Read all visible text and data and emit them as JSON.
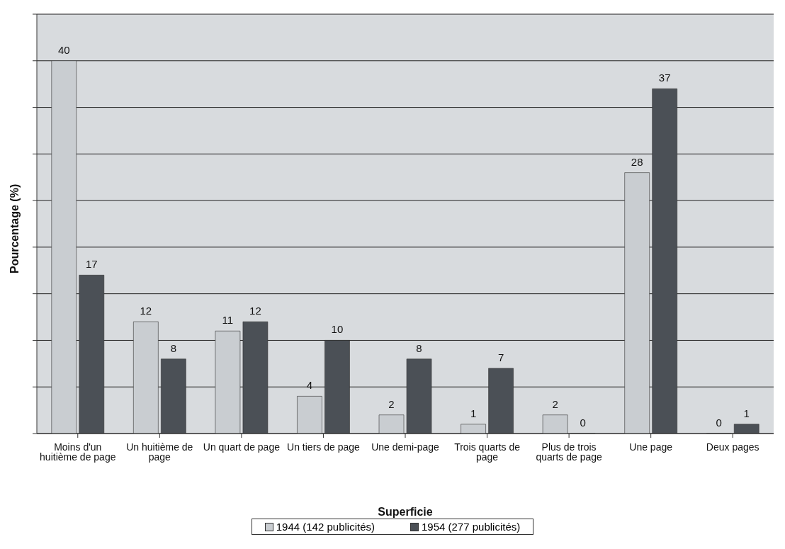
{
  "chart_data": {
    "type": "bar",
    "xlabel": "Superficie",
    "ylabel": "Pourcentage (%)",
    "categories": [
      "Moins d'un huitième de page",
      "Un huitième de page",
      "Un quart de page",
      "Un tiers de page",
      "Une demi-page",
      "Trois quarts de page",
      "Plus de trois quarts de page",
      "Une page",
      "Deux pages"
    ],
    "series": [
      {
        "name": "1944 (142 publicités)",
        "color": "#c9cdd1",
        "values": [
          40,
          12,
          11,
          4,
          2,
          1,
          2,
          28,
          0
        ]
      },
      {
        "name": "1954 (277 publicités)",
        "color": "#4b5056",
        "values": [
          17,
          8,
          12,
          10,
          8,
          7,
          0,
          37,
          1
        ]
      }
    ],
    "ylim": [
      0,
      45
    ],
    "tick_labels": "x",
    "grid": "y",
    "data_labels": true,
    "legend": "bottom"
  }
}
